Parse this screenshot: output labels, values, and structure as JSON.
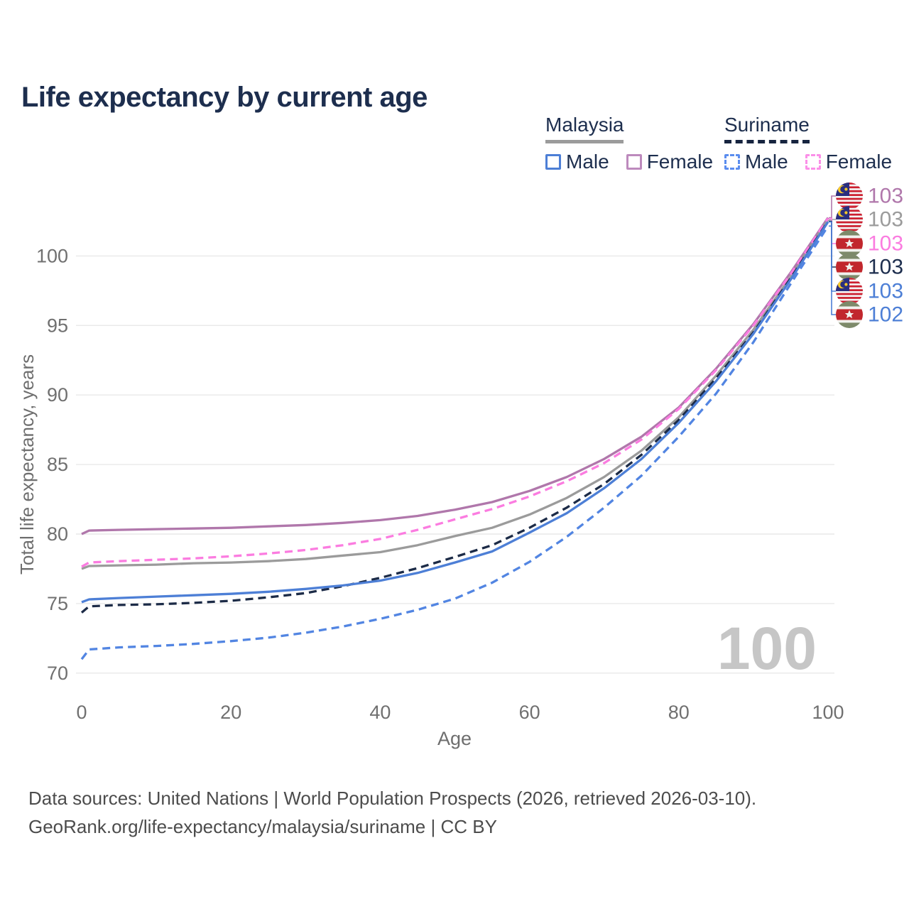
{
  "header": {
    "title": "Life expectancy by current age"
  },
  "legend": {
    "groups": [
      {
        "country": "Malaysia",
        "line_style": "solid",
        "line_color": "#9b9b9b",
        "items": [
          {
            "label": "Male",
            "color": "#4d7fd6",
            "box_style": "solid"
          },
          {
            "label": "Female",
            "color": "#bd8abd",
            "box_style": "solid"
          }
        ]
      },
      {
        "country": "Suriname",
        "line_style": "dashed",
        "line_color": "#16243f",
        "items": [
          {
            "label": "Male",
            "color": "#5b8def",
            "box_style": "dashed"
          },
          {
            "label": "Female",
            "color": "#fb90e8",
            "box_style": "dashed"
          }
        ]
      }
    ]
  },
  "chart_data": {
    "type": "line",
    "title": "Life expectancy by current age",
    "xlabel": "Age",
    "ylabel": "Total life expectancy, years",
    "xlim": [
      0,
      100
    ],
    "ylim": [
      69,
      104
    ],
    "xticks": [
      0,
      20,
      40,
      60,
      80,
      100
    ],
    "yticks": [
      70,
      75,
      80,
      85,
      90,
      95,
      100
    ],
    "grid": "horizontal",
    "legend_position": "top-right",
    "watermark": "100",
    "ages": [
      0,
      1,
      5,
      10,
      15,
      20,
      25,
      30,
      35,
      40,
      45,
      50,
      55,
      60,
      65,
      70,
      75,
      80,
      85,
      90,
      95,
      100
    ],
    "series": [
      {
        "key": "my_female",
        "name": "Malaysia Female",
        "country": "Malaysia",
        "sex": "Female",
        "color": "#b077ab",
        "style": "solid",
        "values": [
          80.0,
          80.25,
          80.3,
          80.35,
          80.4,
          80.45,
          80.55,
          80.65,
          80.8,
          81.0,
          81.3,
          81.75,
          82.3,
          83.1,
          84.1,
          85.4,
          87.0,
          89.1,
          91.9,
          95.1,
          98.8,
          102.75
        ]
      },
      {
        "key": "my_all",
        "name": "Malaysia Both sexes",
        "country": "Malaysia",
        "sex": "All",
        "color": "#9b9b9b",
        "style": "solid",
        "values": [
          77.5,
          77.7,
          77.75,
          77.8,
          77.9,
          77.95,
          78.05,
          78.2,
          78.45,
          78.7,
          79.2,
          79.85,
          80.45,
          81.4,
          82.6,
          84.1,
          86.0,
          88.4,
          91.4,
          94.7,
          98.5,
          102.6
        ]
      },
      {
        "key": "sr_female",
        "name": "Suriname Female",
        "country": "Suriname",
        "sex": "Female",
        "color": "#fb7ce0",
        "style": "dashed",
        "values": [
          77.65,
          77.95,
          78.05,
          78.15,
          78.25,
          78.4,
          78.6,
          78.85,
          79.2,
          79.65,
          80.3,
          81.05,
          81.8,
          82.7,
          83.8,
          85.1,
          86.8,
          89.0,
          91.8,
          95.0,
          98.7,
          102.7
        ]
      },
      {
        "key": "sr_all",
        "name": "Suriname Both sexes",
        "country": "Suriname",
        "sex": "All",
        "color": "#1c2b47",
        "style": "dashed",
        "values": [
          74.35,
          74.8,
          74.9,
          74.95,
          75.05,
          75.2,
          75.45,
          75.75,
          76.25,
          76.85,
          77.55,
          78.35,
          79.2,
          80.45,
          81.9,
          83.6,
          85.7,
          88.2,
          91.2,
          94.5,
          98.4,
          102.5
        ]
      },
      {
        "key": "my_male",
        "name": "Malaysia Male",
        "country": "Malaysia",
        "sex": "Male",
        "color": "#4d7fd6",
        "style": "solid",
        "values": [
          75.1,
          75.3,
          75.4,
          75.5,
          75.6,
          75.7,
          75.85,
          76.05,
          76.3,
          76.65,
          77.2,
          77.95,
          78.75,
          80.1,
          81.5,
          83.3,
          85.4,
          88.0,
          91.0,
          94.4,
          98.3,
          102.45
        ]
      },
      {
        "key": "sr_male",
        "name": "Suriname Male",
        "country": "Suriname",
        "sex": "Male",
        "color": "#5285e2",
        "style": "dashed",
        "values": [
          71.0,
          71.7,
          71.85,
          71.95,
          72.1,
          72.3,
          72.55,
          72.9,
          73.35,
          73.9,
          74.55,
          75.35,
          76.5,
          78.0,
          79.8,
          81.9,
          84.2,
          87.0,
          90.1,
          93.8,
          98.0,
          102.15
        ]
      }
    ],
    "end_labels": [
      {
        "series": "my_female",
        "flag": "malaysia",
        "value": "103",
        "color": "#b077ab"
      },
      {
        "series": "my_all",
        "flag": "malaysia",
        "value": "103",
        "color": "#9b9b9b"
      },
      {
        "series": "sr_female",
        "flag": "suriname",
        "value": "103",
        "color": "#fb7ce0"
      },
      {
        "series": "sr_all",
        "flag": "suriname",
        "value": "103",
        "color": "#1d2e4e"
      },
      {
        "series": "my_male",
        "flag": "malaysia",
        "value": "103",
        "color": "#4d7fd6"
      },
      {
        "series": "sr_male",
        "flag": "suriname",
        "value": "102",
        "color": "#4d7fd6"
      }
    ]
  },
  "footer": {
    "line1": "Data sources: United Nations | World Population Prospects (2026, retrieved 2026-03-10).",
    "line2": "GeoRank.org/life-expectancy/malaysia/suriname | CC BY"
  }
}
